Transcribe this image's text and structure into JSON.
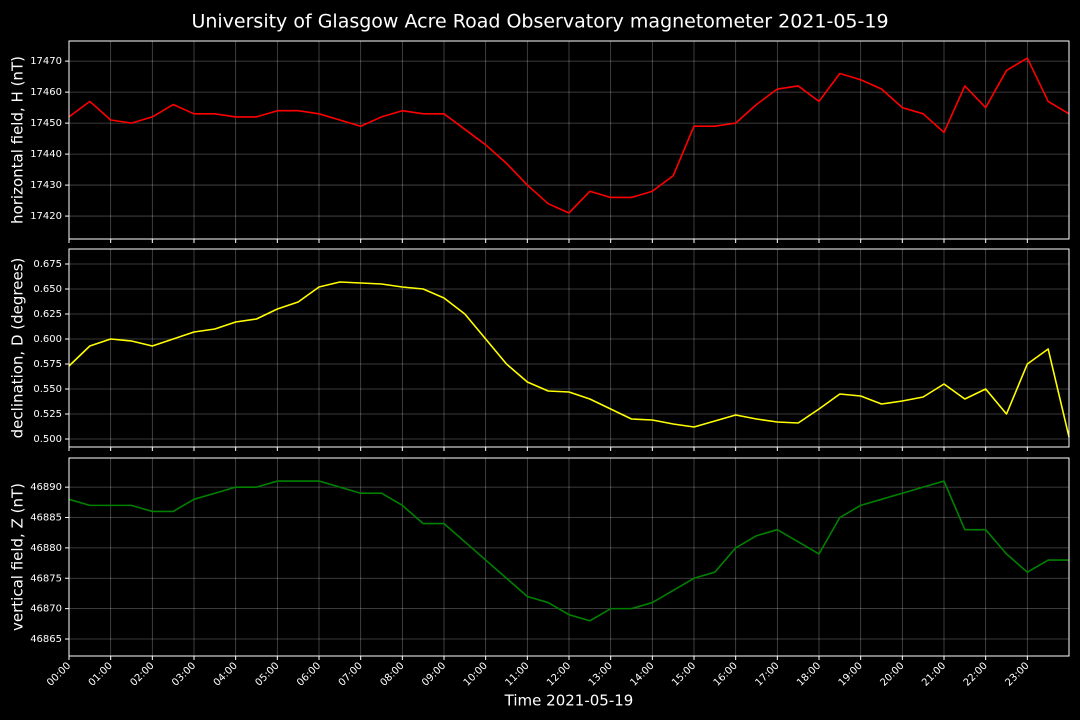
{
  "chart_data": [
    {
      "type": "line",
      "title": "University of Glasgow Acre Road Observatory magnetometer 2021-05-19",
      "y_label": "horizontal field, H (nT)",
      "grid": true,
      "x": [
        0,
        0.5,
        1,
        1.5,
        2,
        2.5,
        3,
        3.5,
        4,
        4.5,
        5,
        5.5,
        6,
        6.5,
        7,
        7.5,
        8,
        8.5,
        9,
        9.5,
        10,
        10.5,
        11,
        11.5,
        12,
        12.5,
        13,
        13.5,
        14,
        14.5,
        15,
        15.5,
        16,
        16.5,
        17,
        17.5,
        18,
        18.5,
        19,
        19.5,
        20,
        20.5,
        21,
        21.5,
        22,
        22.5,
        23,
        23.5,
        24
      ],
      "series": [
        {
          "color": "#ff0000",
          "values": [
            17452,
            17457,
            17451,
            17450,
            17452,
            17456,
            17453,
            17453,
            17452,
            17452,
            17454,
            17454,
            17453,
            17451,
            17449,
            17452,
            17454,
            17453,
            17453,
            17448,
            17443,
            17437,
            17430,
            17424,
            17421,
            17428,
            17426,
            17426,
            17428,
            17433,
            17449,
            17449,
            17450,
            17456,
            17461,
            17462,
            17457,
            17466,
            17464,
            17461,
            17455,
            17453,
            17447,
            17462,
            17455,
            17467,
            17471,
            17457,
            17453
          ]
        }
      ],
      "xlim": [
        0,
        24
      ],
      "xticks": [
        0,
        1,
        2,
        3,
        4,
        5,
        6,
        7,
        8,
        9,
        10,
        11,
        12,
        13,
        14,
        15,
        16,
        17,
        18,
        19,
        20,
        21,
        22,
        23
      ],
      "ylim": [
        17412.6,
        17476.5
      ],
      "yticks": [
        17420,
        17430,
        17440,
        17450,
        17460,
        17470
      ]
    },
    {
      "type": "line",
      "y_label": "declination, D (degrees)",
      "grid": true,
      "x": [
        0,
        0.5,
        1,
        1.5,
        2,
        2.5,
        3,
        3.5,
        4,
        4.5,
        5,
        5.5,
        6,
        6.5,
        7,
        7.5,
        8,
        8.5,
        9,
        9.5,
        10,
        10.5,
        11,
        11.5,
        12,
        12.5,
        13,
        13.5,
        14,
        14.5,
        15,
        15.5,
        16,
        16.5,
        17,
        17.5,
        18,
        18.5,
        19,
        19.5,
        20,
        20.5,
        21,
        21.5,
        22,
        22.5,
        23,
        23.5,
        24
      ],
      "series": [
        {
          "color": "#ffff00",
          "values": [
            0.573,
            0.593,
            0.6,
            0.598,
            0.593,
            0.6,
            0.607,
            0.61,
            0.617,
            0.62,
            0.63,
            0.637,
            0.652,
            0.657,
            0.656,
            0.655,
            0.652,
            0.65,
            0.641,
            0.625,
            0.6,
            0.575,
            0.557,
            0.548,
            0.547,
            0.54,
            0.53,
            0.52,
            0.519,
            0.515,
            0.512,
            0.518,
            0.524,
            0.52,
            0.517,
            0.516,
            0.53,
            0.545,
            0.543,
            0.535,
            0.538,
            0.542,
            0.555,
            0.54,
            0.55,
            0.525,
            0.575,
            0.59,
            0.502
          ]
        }
      ],
      "xlim": [
        0,
        24
      ],
      "xticks": [
        0,
        1,
        2,
        3,
        4,
        5,
        6,
        7,
        8,
        9,
        10,
        11,
        12,
        13,
        14,
        15,
        16,
        17,
        18,
        19,
        20,
        21,
        22,
        23
      ],
      "ylim": [
        0.492,
        0.69
      ],
      "yticks": [
        {
          "value": 0.5,
          "label": "0.500"
        },
        0.525,
        {
          "value": 0.55,
          "label": "0.550"
        },
        0.575,
        {
          "value": 0.6,
          "label": "0.600"
        },
        0.625,
        {
          "value": 0.65,
          "label": "0.650"
        },
        0.675
      ]
    },
    {
      "type": "line",
      "y_label": "vertical field, Z (nT)",
      "x_label": "Time 2021-05-19",
      "grid": true,
      "x": [
        0,
        0.5,
        1,
        1.5,
        2,
        2.5,
        3,
        3.5,
        4,
        4.5,
        5,
        5.5,
        6,
        6.5,
        7,
        7.5,
        8,
        8.5,
        9,
        9.5,
        10,
        10.5,
        11,
        11.5,
        12,
        12.5,
        13,
        13.5,
        14,
        14.5,
        15,
        15.5,
        16,
        16.5,
        17,
        17.5,
        18,
        18.5,
        19,
        19.5,
        20,
        20.5,
        21,
        21.5,
        22,
        22.5,
        23,
        23.5,
        24
      ],
      "series": [
        {
          "color": "#008000",
          "values": [
            46888,
            46887,
            46887,
            46887,
            46886,
            46886,
            46888,
            46889,
            46890,
            46890,
            46891,
            46891,
            46891,
            46890,
            46889,
            46889,
            46887,
            46884,
            46884,
            46881,
            46878,
            46875,
            46872,
            46871,
            46869,
            46868,
            46870,
            46870,
            46871,
            46873,
            46875,
            46876,
            46880,
            46882,
            46883,
            46881,
            46879,
            46885,
            46887,
            46888,
            46889,
            46890,
            46891,
            46883,
            46883,
            46879,
            46876,
            46878,
            46878
          ]
        }
      ],
      "xlim": [
        0,
        24
      ],
      "xticks": [
        {
          "value": 0,
          "label": "00:00"
        },
        {
          "value": 1,
          "label": "01:00"
        },
        {
          "value": 2,
          "label": "02:00"
        },
        {
          "value": 3,
          "label": "03:00"
        },
        {
          "value": 4,
          "label": "04:00"
        },
        {
          "value": 5,
          "label": "05:00"
        },
        {
          "value": 6,
          "label": "06:00"
        },
        {
          "value": 7,
          "label": "07:00"
        },
        {
          "value": 8,
          "label": "08:00"
        },
        {
          "value": 9,
          "label": "09:00"
        },
        {
          "value": 10,
          "label": "10:00"
        },
        {
          "value": 11,
          "label": "11:00"
        },
        {
          "value": 12,
          "label": "12:00"
        },
        {
          "value": 13,
          "label": "13:00"
        },
        {
          "value": 14,
          "label": "14:00"
        },
        {
          "value": 15,
          "label": "15:00"
        },
        {
          "value": 16,
          "label": "16:00"
        },
        {
          "value": 17,
          "label": "17:00"
        },
        {
          "value": 18,
          "label": "18:00"
        },
        {
          "value": 19,
          "label": "19:00"
        },
        {
          "value": 20,
          "label": "20:00"
        },
        {
          "value": 21,
          "label": "21:00"
        },
        {
          "value": 22,
          "label": "22:00"
        },
        {
          "value": 23,
          "label": "23:00"
        }
      ],
      "ylim": [
        46862.2,
        46894.8
      ],
      "yticks": [
        46865,
        46870,
        46875,
        46880,
        46885,
        46890
      ]
    }
  ]
}
